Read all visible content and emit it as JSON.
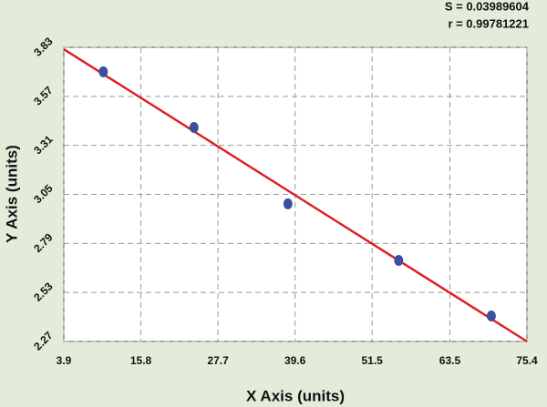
{
  "chart_data": {
    "type": "scatter",
    "annotations": [
      "S = 0.03989604",
      "r = 0.99781221"
    ],
    "x_label": "X Axis (units)",
    "y_label": "Y Axis (units)",
    "x": [
      10.0,
      24.0,
      38.5,
      55.6,
      69.9
    ],
    "values": [
      3.7,
      3.405,
      3.0,
      2.7,
      2.405
    ],
    "color": "#3a4fa0",
    "fit": {
      "x": [
        3.9,
        75.4
      ],
      "values": [
        3.82,
        2.27
      ],
      "color": "#e02020"
    },
    "xlim": [
      3.9,
      75.4
    ],
    "xticks": [
      3.9,
      15.8,
      27.7,
      39.6,
      51.5,
      63.5,
      75.4
    ],
    "ylim": [
      2.27,
      3.83
    ],
    "yticks": [
      2.27,
      2.53,
      2.79,
      3.05,
      3.31,
      3.57,
      3.83
    ],
    "grid": true
  }
}
